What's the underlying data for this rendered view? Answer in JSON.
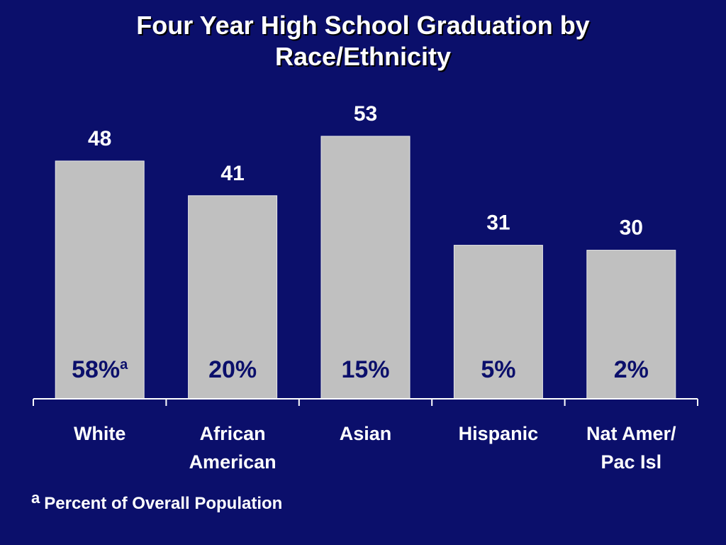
{
  "title_lines": [
    "Four Year High School Graduation by",
    "Race/Ethnicity"
  ],
  "colors": {
    "background": "#0b0f6b",
    "bar": "#c0c0c0",
    "text": "#ffffff",
    "axis": "#ffffff"
  },
  "chart_data": {
    "type": "bar",
    "title": "Four Year High School Graduation by Race/Ethnicity",
    "categories": [
      [
        "White"
      ],
      [
        "African",
        "American"
      ],
      [
        "Asian"
      ],
      [
        "Hispanic"
      ],
      [
        "Nat Amer/",
        "Pac Isl"
      ]
    ],
    "values": [
      48,
      41,
      53,
      31,
      30
    ],
    "value_labels": [
      "48",
      "41",
      "53",
      "31",
      "30"
    ],
    "population_labels": [
      "58%",
      "20%",
      "15%",
      "5%",
      "2%"
    ],
    "population_marker": "a",
    "ylim": [
      0,
      70
    ],
    "grid": false
  },
  "footnote": {
    "marker": "a",
    "text": "Percent of Overall Population"
  }
}
